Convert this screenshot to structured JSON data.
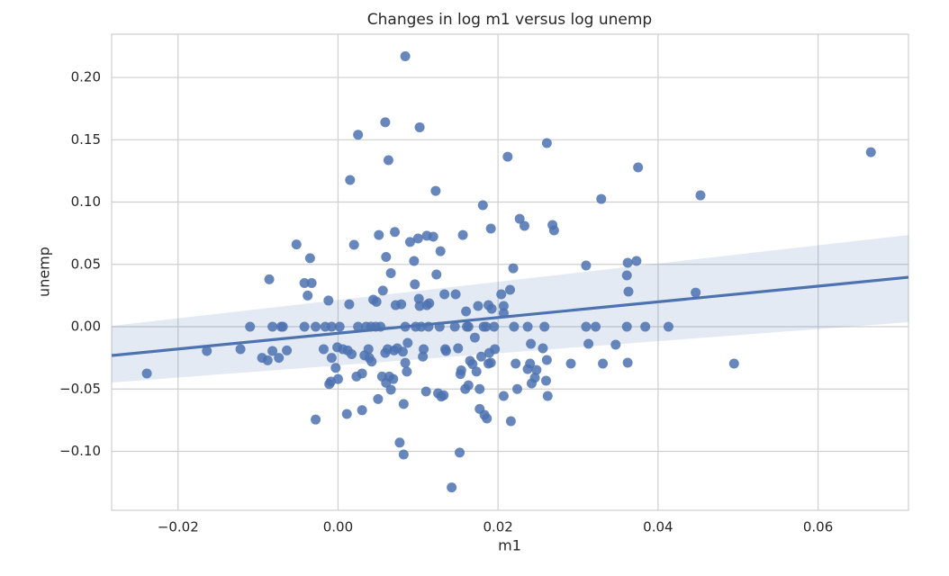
{
  "chart_data": {
    "type": "scatter",
    "title": "Changes in log m1 versus log unemp",
    "x_label": "m1",
    "y_label": "unemp",
    "color": "#4c72b0",
    "grid": true,
    "xlim": [
      -0.0283,
      0.0713
    ],
    "ylim": [
      -0.1473,
      0.2347
    ],
    "xticks": [
      {
        "value": -0.02,
        "label": "−0.02"
      },
      {
        "value": 0,
        "label": "0.00"
      },
      {
        "value": 0.02,
        "label": "0.02"
      },
      {
        "value": 0.04,
        "label": "0.04"
      },
      {
        "value": 0.06,
        "label": "0.06"
      }
    ],
    "yticks": [
      {
        "value": -0.1,
        "label": "−0.10"
      },
      {
        "value": -0.05,
        "label": "−0.05"
      },
      {
        "value": 0,
        "label": "0.00"
      },
      {
        "value": 0.05,
        "label": "0.05"
      },
      {
        "value": 0.1,
        "label": "0.10"
      },
      {
        "value": 0.15,
        "label": "0.15"
      },
      {
        "value": 0.2,
        "label": "0.20"
      }
    ],
    "x": [
      -0.0239,
      -0.0164,
      -0.0122,
      -0.011,
      -0.0095,
      -0.0088,
      -0.0086,
      -0.0082,
      -0.0082,
      -0.0074,
      -0.0071,
      -0.0069,
      -0.0064,
      -0.0052,
      -0.0042,
      -0.0042,
      -0.0038,
      -0.0035,
      -0.0033,
      -0.0028,
      -0.0028,
      -0.0018,
      -0.0016,
      -0.0012,
      -0.0011,
      -0.0009,
      -0.0008,
      -0.0008,
      -0.0003,
      -0.0001,
      0.0,
      0.0002,
      0.0006,
      0.0011,
      0.0012,
      0.0014,
      0.0015,
      0.0017,
      0.002,
      0.0023,
      0.0025,
      0.0025,
      0.003,
      0.003,
      0.0033,
      0.0035,
      0.0038,
      0.0039,
      0.0041,
      0.0042,
      0.0044,
      0.0047,
      0.0048,
      0.005,
      0.0051,
      0.0053,
      0.0055,
      0.0056,
      0.0059,
      0.0059,
      0.006,
      0.006,
      0.0062,
      0.0063,
      0.0064,
      0.0066,
      0.0066,
      0.0069,
      0.007,
      0.0071,
      0.0072,
      0.0074,
      0.0077,
      0.0079,
      0.0081,
      0.0082,
      0.0082,
      0.0084,
      0.0084,
      0.0084,
      0.0086,
      0.0087,
      0.009,
      0.0095,
      0.0096,
      0.0097,
      0.01,
      0.0101,
      0.0102,
      0.0102,
      0.0104,
      0.0106,
      0.0107,
      0.011,
      0.0111,
      0.0111,
      0.0113,
      0.0114,
      0.0119,
      0.0122,
      0.0123,
      0.0125,
      0.0127,
      0.0128,
      0.0129,
      0.0132,
      0.0133,
      0.0134,
      0.0135,
      0.0142,
      0.0146,
      0.0147,
      0.015,
      0.0152,
      0.0153,
      0.0154,
      0.0156,
      0.0159,
      0.016,
      0.0161,
      0.0163,
      0.0163,
      0.0165,
      0.0168,
      0.0171,
      0.0173,
      0.0175,
      0.0177,
      0.0177,
      0.0179,
      0.0181,
      0.0182,
      0.0183,
      0.0185,
      0.0186,
      0.0188,
      0.0188,
      0.0189,
      0.0191,
      0.0191,
      0.0192,
      0.0195,
      0.0196,
      0.0204,
      0.0207,
      0.0207,
      0.0207,
      0.0212,
      0.0215,
      0.0216,
      0.0219,
      0.022,
      0.0222,
      0.0224,
      0.0227,
      0.0233,
      0.0237,
      0.0237,
      0.024,
      0.0241,
      0.0242,
      0.0246,
      0.0248,
      0.0256,
      0.0258,
      0.026,
      0.0261,
      0.0261,
      0.0262,
      0.0268,
      0.027,
      0.0291,
      0.031,
      0.031,
      0.0313,
      0.0322,
      0.0329,
      0.0331,
      0.0347,
      0.0361,
      0.0361,
      0.0362,
      0.0362,
      0.0363,
      0.0373,
      0.0375,
      0.0384,
      0.0413,
      0.0447,
      0.0453,
      0.0495,
      0.0666
    ],
    "y": [
      -0.0375,
      -0.0195,
      -0.018,
      0,
      -0.025,
      -0.027,
      0.038,
      0,
      -0.0195,
      -0.025,
      0,
      0,
      -0.019,
      0.066,
      0.035,
      0,
      0.025,
      0.055,
      0.035,
      -0.0745,
      0,
      -0.018,
      0,
      0.021,
      -0.046,
      -0.044,
      -0.025,
      0,
      -0.033,
      -0.0165,
      -0.042,
      0,
      -0.018,
      -0.07,
      -0.019,
      0.018,
      0.1177,
      -0.022,
      0.0657,
      -0.04,
      0.154,
      0,
      -0.067,
      -0.0375,
      -0.023,
      0,
      -0.018,
      -0.025,
      0,
      -0.028,
      0.0217,
      0,
      0.02,
      -0.058,
      0.0736,
      0,
      -0.04,
      0.029,
      0.164,
      -0.021,
      0.056,
      -0.045,
      -0.018,
      0.1336,
      -0.04,
      0.043,
      -0.0505,
      -0.042,
      -0.019,
      0.076,
      0.0173,
      -0.0173,
      -0.093,
      0.018,
      -0.02,
      -0.1025,
      -0.062,
      0.217,
      -0.029,
      0,
      -0.036,
      -0.013,
      0.068,
      0.0527,
      0.034,
      0,
      0.0708,
      0.0224,
      0.16,
      0.0166,
      0,
      -0.024,
      -0.018,
      -0.052,
      0.073,
      0.0173,
      0,
      0.0188,
      0.0722,
      0.109,
      0.0419,
      -0.0534,
      0,
      0.0606,
      -0.056,
      -0.055,
      0.026,
      -0.018,
      -0.0195,
      -0.129,
      0,
      0.026,
      -0.0173,
      -0.101,
      -0.038,
      -0.035,
      0.0736,
      -0.05,
      0.0123,
      0,
      -0.047,
      0,
      -0.0274,
      -0.03,
      -0.0087,
      -0.036,
      0.0166,
      -0.066,
      -0.05,
      -0.024,
      0.0975,
      0,
      -0.0708,
      0,
      -0.0736,
      0.0173,
      -0.0296,
      -0.021,
      0.0787,
      -0.0289,
      0.0144,
      0,
      -0.018,
      0.026,
      -0.0556,
      0.0166,
      0.0108,
      0.1364,
      0.0296,
      -0.0758,
      0.0469,
      0,
      -0.0296,
      -0.05,
      0.0866,
      0.0809,
      0,
      -0.034,
      -0.0296,
      -0.0137,
      -0.0455,
      -0.041,
      -0.0347,
      -0.0173,
      0,
      -0.0433,
      0.1473,
      -0.0267,
      -0.0556,
      0.0816,
      0.0773,
      -0.0296,
      0.0491,
      0,
      -0.0137,
      0,
      0.1025,
      -0.0296,
      -0.0144,
      0,
      0.0412,
      0.0513,
      -0.0289,
      0.0282,
      0.0527,
      0.1278,
      0,
      0,
      0.0274,
      0.1054,
      -0.0296,
      0.14
    ],
    "regression": {
      "x": [
        -0.0283,
        0.0713
      ],
      "y": [
        -0.0231,
        0.0397
      ],
      "ci_lower": [
        -0.0448,
        0.0036
      ],
      "ci_upper": [
        0.0007,
        0.0736
      ]
    }
  }
}
